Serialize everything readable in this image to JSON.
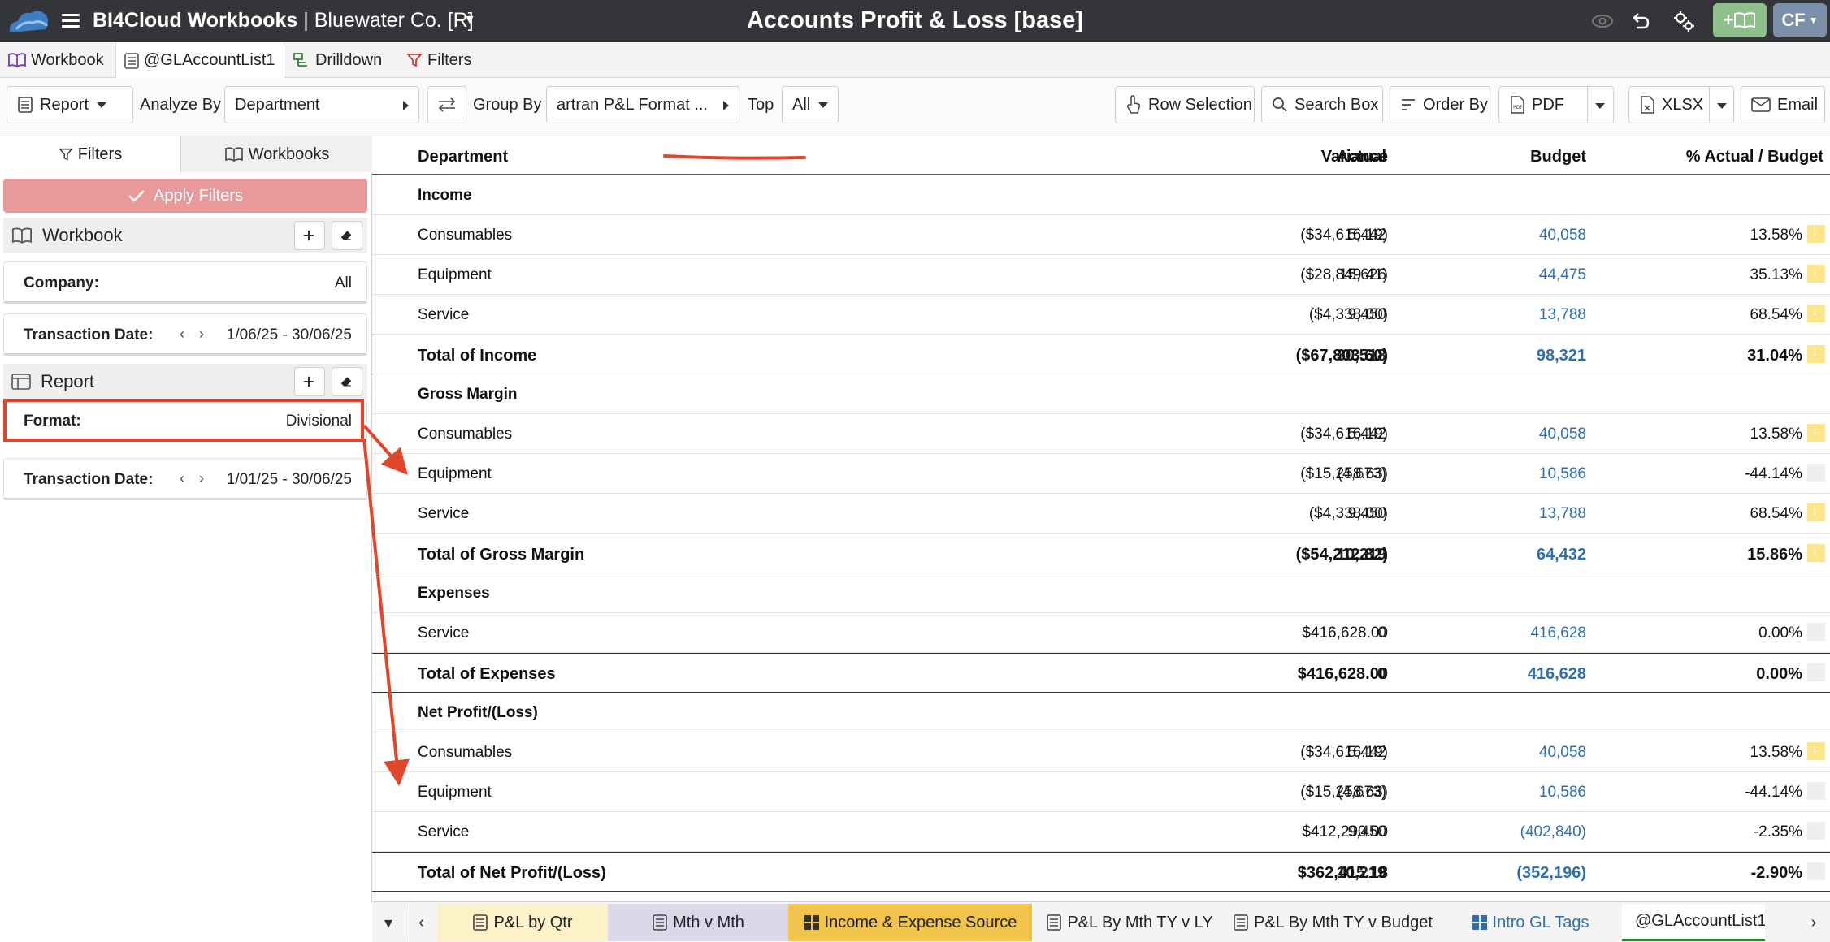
{
  "app": {
    "name": "BI4Cloud Workbooks",
    "separator": " | ",
    "company": "Bluewater Co. [R]",
    "page_title": "Accounts Profit & Loss [base]",
    "add_workbook_label": "+",
    "user_initials": "CF"
  },
  "tabs": [
    {
      "label": "Workbook",
      "icon": "book-icon"
    },
    {
      "label": "@GLAccountList1",
      "icon": "list-icon"
    },
    {
      "label": "Drilldown",
      "icon": "drilldown-icon"
    },
    {
      "label": "Filters",
      "icon": "filter-icon"
    }
  ],
  "toolbar": {
    "report_label": "Report",
    "analyze_by_label": "Analyze By",
    "analyze_by_value": "Department",
    "group_by_label": "Group By",
    "group_by_value": "artran P&L Format ...",
    "top_label": "Top",
    "top_value": "All",
    "row_selection_label": "Row Selection",
    "search_box_label": "Search Box",
    "order_by_label": "Order By",
    "pdf_label": "PDF",
    "xlsx_label": "XLSX",
    "email_label": "Email"
  },
  "sidebar": {
    "tab_filters": "Filters",
    "tab_workbooks": "Workbooks",
    "apply_label": "Apply Filters",
    "workbook_section": "Workbook",
    "company_label": "Company:",
    "company_value": "All",
    "wb_txn_label": "Transaction Date:",
    "wb_txn_value": "1/06/25 - 30/06/25",
    "report_section": "Report",
    "format_label": "Format:",
    "format_value": "Divisional",
    "rp_txn_label": "Transaction Date:",
    "rp_txn_value": "1/01/25 - 30/06/25"
  },
  "grid": {
    "headers": {
      "department": "Department",
      "actual": "Actual",
      "budget": "Budget",
      "variance": "Variance",
      "pct": "% Actual / Budget"
    },
    "rows": [
      {
        "type": "group",
        "dept": "Income"
      },
      {
        "type": "row",
        "dept": "Consumables",
        "actual": "5,442",
        "budget": "40,058",
        "variance": "($34,616.19)",
        "pct": "13.58%",
        "warn": true
      },
      {
        "type": "row",
        "dept": "Equipment",
        "actual": "15,626",
        "budget": "44,475",
        "variance": "($28,849.41)",
        "pct": "35.13%",
        "warn": true
      },
      {
        "type": "row",
        "dept": "Service",
        "actual": "9,450",
        "budget": "13,788",
        "variance": "($4,338.00)",
        "pct": "68.54%",
        "warn": true
      },
      {
        "type": "total",
        "dept": "Total of Income",
        "actual": "30,518",
        "budget": "98,321",
        "variance": "($67,803.60)",
        "pct": "31.04%",
        "warn": true
      },
      {
        "type": "group",
        "dept": "Gross Margin"
      },
      {
        "type": "row",
        "dept": "Consumables",
        "actual": "5,442",
        "budget": "40,058",
        "variance": "($34,616.19)",
        "pct": "13.58%",
        "warn": true
      },
      {
        "type": "row",
        "dept": "Equipment",
        "actual": "(4,673)",
        "budget": "10,586",
        "variance": "($15,258.63)",
        "pct": "-44.14%",
        "warn": false
      },
      {
        "type": "row",
        "dept": "Service",
        "actual": "9,450",
        "budget": "13,788",
        "variance": "($4,338.00)",
        "pct": "68.54%",
        "warn": true
      },
      {
        "type": "total",
        "dept": "Total of Gross Margin",
        "actual": "10,219",
        "budget": "64,432",
        "variance": "($54,212.82)",
        "pct": "15.86%",
        "warn": true
      },
      {
        "type": "group",
        "dept": "Expenses"
      },
      {
        "type": "row",
        "dept": "Service",
        "actual": "0",
        "budget": "416,628",
        "variance": "$416,628.00",
        "pct": "0.00%",
        "warn": false
      },
      {
        "type": "total",
        "dept": "Total of Expenses",
        "actual": "0",
        "budget": "416,628",
        "variance": "$416,628.00",
        "pct": "0.00%",
        "warn": false
      },
      {
        "type": "group",
        "dept": "Net Profit/(Loss)"
      },
      {
        "type": "row",
        "dept": "Consumables",
        "actual": "5,442",
        "budget": "40,058",
        "variance": "($34,616.19)",
        "pct": "13.58%",
        "warn": true
      },
      {
        "type": "row",
        "dept": "Equipment",
        "actual": "(4,673)",
        "budget": "10,586",
        "variance": "($15,258.63)",
        "pct": "-44.14%",
        "warn": false
      },
      {
        "type": "row",
        "dept": "Service",
        "actual": "9,450",
        "budget": "(402,840)",
        "variance": "$412,290.00",
        "pct": "-2.35%",
        "warn": false
      },
      {
        "type": "total",
        "dept": "Total of Net Profit/(Loss)",
        "actual": "10,219",
        "budget": "(352,196)",
        "variance": "$362,415.18",
        "pct": "-2.90%",
        "warn": false
      }
    ]
  },
  "bottom_tabs": [
    {
      "label": "P&L by Qtr",
      "bg": "#fdf1c7",
      "color": "#222"
    },
    {
      "label": "Mth v Mth",
      "bg": "#dcd8ea",
      "color": "#222"
    },
    {
      "label": "Income & Expense Source",
      "bg": "#f1c44b",
      "color": "#222"
    },
    {
      "label": "P&L By Mth TY v LY",
      "bg": "#f4f4f4",
      "color": "#222"
    },
    {
      "label": "P&L By Mth TY v Budget",
      "bg": "#f4f4f4",
      "color": "#222"
    },
    {
      "label": "Intro GL Tags",
      "bg": "#f4f4f4",
      "color": "#2f6fb0"
    },
    {
      "label": "@GLAccountList1",
      "bg": "#ffffff",
      "color": "#222"
    }
  ],
  "colors": {
    "titlebar": "#333538",
    "apply_button": "#e89a9a",
    "budget_link": "#2f6fb0",
    "warn_indicator": "#fde58a",
    "annotation": "#e0472a"
  }
}
